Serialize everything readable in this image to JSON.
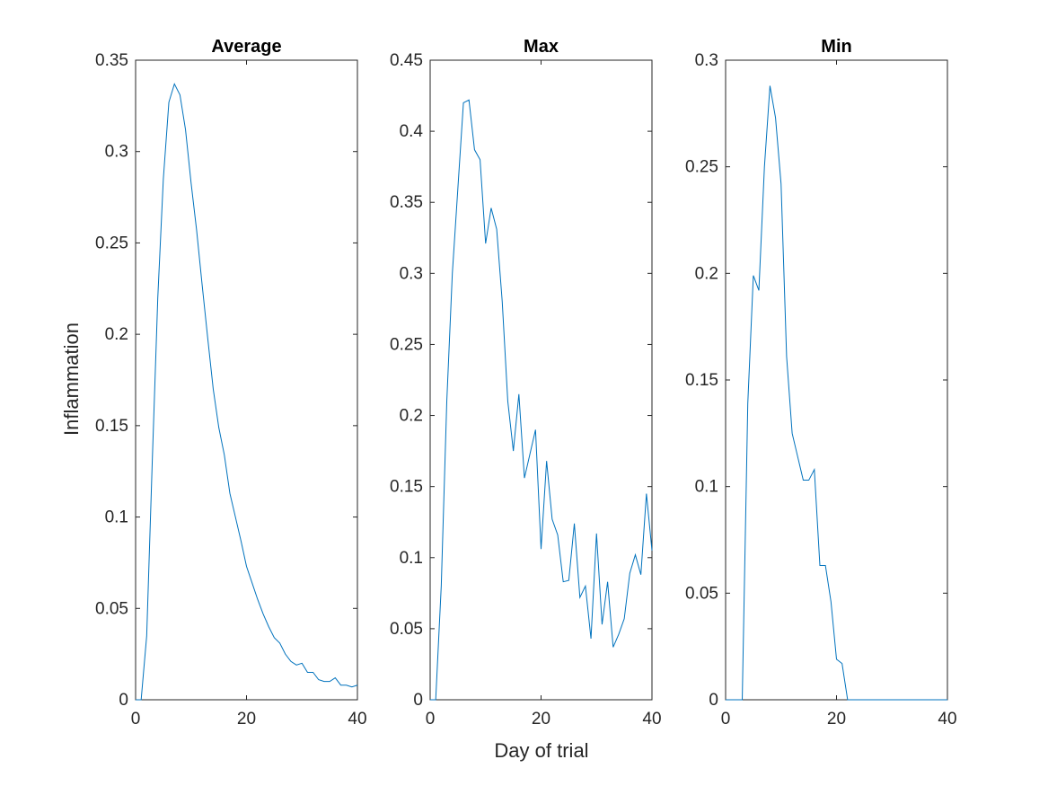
{
  "figure": {
    "ylabel": "Inflammation",
    "xlabel": "Day of trial"
  },
  "chart_data": [
    {
      "type": "line",
      "title": "Average",
      "xlabel": "",
      "ylabel": "Inflammation",
      "xlim": [
        0,
        40
      ],
      "ylim": [
        0,
        0.35
      ],
      "xticks": [
        0,
        20,
        40
      ],
      "yticks": [
        0,
        0.05,
        0.1,
        0.15,
        0.2,
        0.25,
        0.3,
        0.35
      ],
      "grid": false,
      "series": [
        {
          "color": "#0072BD",
          "x": [
            0,
            1,
            2,
            3,
            4,
            5,
            6,
            7,
            8,
            9,
            10,
            11,
            12,
            13,
            14,
            15,
            16,
            17,
            18,
            19,
            20,
            21,
            22,
            23,
            24,
            25,
            26,
            27,
            28,
            29,
            30,
            31,
            32,
            33,
            34,
            35,
            36,
            37,
            38,
            39,
            40
          ],
          "y": [
            0,
            0,
            0.035,
            0.13,
            0.22,
            0.285,
            0.327,
            0.337,
            0.331,
            0.312,
            0.283,
            0.257,
            0.227,
            0.198,
            0.17,
            0.149,
            0.134,
            0.113,
            0.1,
            0.087,
            0.073,
            0.064,
            0.055,
            0.047,
            0.04,
            0.034,
            0.031,
            0.025,
            0.021,
            0.019,
            0.02,
            0.015,
            0.015,
            0.011,
            0.01,
            0.01,
            0.012,
            0.008,
            0.008,
            0.007,
            0.008
          ]
        }
      ]
    },
    {
      "type": "line",
      "title": "Max",
      "xlabel": "Day of trial",
      "ylabel": "",
      "xlim": [
        0,
        40
      ],
      "ylim": [
        0,
        0.45
      ],
      "xticks": [
        0,
        20,
        40
      ],
      "yticks": [
        0,
        0.05,
        0.1,
        0.15,
        0.2,
        0.25,
        0.3,
        0.35,
        0.4,
        0.45
      ],
      "grid": false,
      "series": [
        {
          "color": "#0072BD",
          "x": [
            0,
            1,
            2,
            3,
            4,
            5,
            6,
            7,
            8,
            9,
            10,
            11,
            12,
            13,
            14,
            15,
            16,
            17,
            18,
            19,
            20,
            21,
            22,
            23,
            24,
            25,
            26,
            27,
            28,
            29,
            30,
            31,
            32,
            33,
            34,
            35,
            36,
            37,
            38,
            39,
            40
          ],
          "y": [
            0,
            0,
            0.08,
            0.21,
            0.3,
            0.36,
            0.42,
            0.422,
            0.387,
            0.38,
            0.321,
            0.346,
            0.331,
            0.28,
            0.21,
            0.175,
            0.215,
            0.156,
            0.173,
            0.19,
            0.106,
            0.168,
            0.127,
            0.116,
            0.083,
            0.084,
            0.124,
            0.072,
            0.08,
            0.043,
            0.117,
            0.053,
            0.083,
            0.037,
            0.046,
            0.057,
            0.089,
            0.102,
            0.088,
            0.145,
            0.105
          ]
        }
      ]
    },
    {
      "type": "line",
      "title": "Min",
      "xlabel": "",
      "ylabel": "",
      "xlim": [
        0,
        40
      ],
      "ylim": [
        0,
        0.3
      ],
      "xticks": [
        0,
        20,
        40
      ],
      "yticks": [
        0,
        0.05,
        0.1,
        0.15,
        0.2,
        0.25,
        0.3
      ],
      "grid": false,
      "series": [
        {
          "color": "#0072BD",
          "x": [
            0,
            1,
            2,
            3,
            4,
            5,
            6,
            7,
            8,
            9,
            10,
            11,
            12,
            13,
            14,
            15,
            16,
            17,
            18,
            19,
            20,
            21,
            22,
            23,
            24,
            25,
            26,
            27,
            28,
            29,
            30,
            31,
            32,
            33,
            34,
            35,
            36,
            37,
            38,
            39,
            40
          ],
          "y": [
            0,
            0,
            0,
            0,
            0.139,
            0.199,
            0.192,
            0.25,
            0.288,
            0.273,
            0.242,
            0.161,
            0.125,
            0.114,
            0.103,
            0.103,
            0.108,
            0.063,
            0.063,
            0.046,
            0.019,
            0.017,
            0,
            0,
            0,
            0,
            0,
            0,
            0,
            0,
            0,
            0,
            0,
            0,
            0,
            0,
            0,
            0,
            0,
            0,
            0
          ]
        }
      ]
    }
  ]
}
